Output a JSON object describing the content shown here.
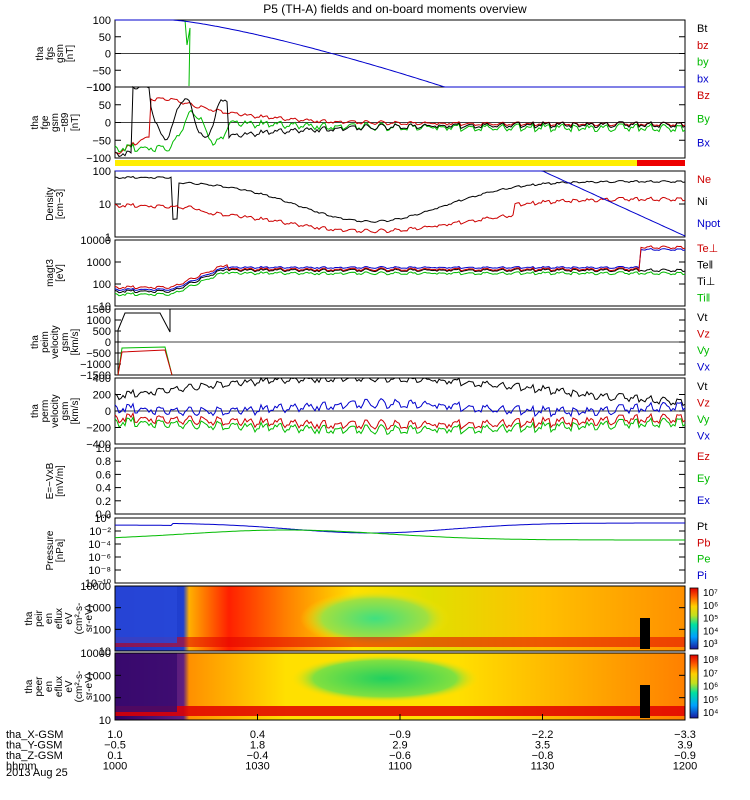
{
  "title": "P5 (TH-A) fields and on-board moments overview",
  "chart_data": {
    "type": "line",
    "title": "P5 (TH-A) fields and on-board moments overview",
    "date": "2013 Aug 25",
    "panels": [
      {
        "id": "fgs",
        "ylabel": [
          "tha",
          "fgs",
          "gsm",
          "[nT]"
        ],
        "ylim": [
          -100,
          100
        ],
        "scale": "linear",
        "ticks": [
          "100",
          "50",
          "0",
          "−50",
          "−100"
        ],
        "legend": [
          {
            "name": "Bt",
            "color": "#000000"
          },
          {
            "name": "bz",
            "color": "#cc0000"
          },
          {
            "name": "by",
            "color": "#00bb00"
          },
          {
            "name": "bx",
            "color": "#0000cc"
          }
        ]
      },
      {
        "id": "fge",
        "ylabel": [
          "tha",
          "fge",
          "gsm",
          "−t89",
          "[nT]"
        ],
        "ylim": [
          -100,
          100
        ],
        "scale": "linear",
        "ticks": [
          "100",
          "50",
          "0",
          "−50",
          "−100"
        ],
        "legend": [
          {
            "name": "Bz",
            "color": "#cc0000"
          },
          {
            "name": "By",
            "color": "#00bb00"
          },
          {
            "name": "Bx",
            "color": "#0000cc"
          }
        ]
      },
      {
        "id": "mode_bar",
        "segments": [
          {
            "from_hhmm": "1000",
            "to_hhmm": "1145",
            "color": "#ffee00"
          },
          {
            "from_hhmm": "1145",
            "to_hhmm": "1200",
            "color": "#ee0000"
          }
        ]
      },
      {
        "id": "density",
        "ylabel": [
          "Density",
          "[cm−3]"
        ],
        "scale": "log",
        "ticks": [
          "100",
          "10",
          "1"
        ],
        "legend": [
          {
            "name": "Ne",
            "color": "#cc0000"
          },
          {
            "name": "Ni",
            "color": "#000000"
          },
          {
            "name": "Npot",
            "color": "#0000cc"
          }
        ]
      },
      {
        "id": "temp",
        "ylabel": [
          "magt3",
          "[eV]"
        ],
        "scale": "log",
        "ticks": [
          "10000",
          "1000",
          "100",
          "10"
        ],
        "legend": [
          {
            "name": "Te⊥",
            "color": "#cc0000"
          },
          {
            "name": "Te‖",
            "color": "#000000"
          },
          {
            "name": "Ti⊥",
            "color": "#000000"
          },
          {
            "name": "Ti‖",
            "color": "#00bb00"
          }
        ]
      },
      {
        "id": "peim_v",
        "ylabel": [
          "tha",
          "peim",
          "velocity",
          "gsm",
          "[km/s]"
        ],
        "ylim": [
          -1500,
          1500
        ],
        "scale": "linear",
        "ticks": [
          "1500",
          "1000",
          "500",
          "0",
          "−500",
          "−1000",
          "−1500"
        ],
        "legend": [
          {
            "name": "Vt",
            "color": "#000000"
          },
          {
            "name": "Vz",
            "color": "#cc0000"
          },
          {
            "name": "Vy",
            "color": "#00bb00"
          },
          {
            "name": "Vx",
            "color": "#0000cc"
          }
        ]
      },
      {
        "id": "perm_v",
        "ylabel": [
          "tha",
          "perm",
          "velocity",
          "gsm",
          "[km/s]"
        ],
        "ylim": [
          -400,
          400
        ],
        "scale": "linear",
        "ticks": [
          "400",
          "200",
          "0",
          "−200",
          "−400"
        ],
        "legend": [
          {
            "name": "Vt",
            "color": "#000000"
          },
          {
            "name": "Vz",
            "color": "#cc0000"
          },
          {
            "name": "Vy",
            "color": "#00bb00"
          },
          {
            "name": "Vx",
            "color": "#0000cc"
          }
        ]
      },
      {
        "id": "efield",
        "ylabel": [
          "E=−VxB",
          "[mV/m]"
        ],
        "ylim": [
          0,
          1
        ],
        "scale": "linear",
        "ticks": [
          "1.0",
          "0.8",
          "0.6",
          "0.4",
          "0.2",
          "0.0"
        ],
        "legend": [
          {
            "name": "Ez",
            "color": "#cc0000"
          },
          {
            "name": "Ey",
            "color": "#00bb00"
          },
          {
            "name": "Ex",
            "color": "#0000cc"
          }
        ]
      },
      {
        "id": "pressure",
        "ylabel": [
          "Pressure",
          "[nPa]"
        ],
        "scale": "log",
        "ticks": [
          "10⁰",
          "10⁻²",
          "10⁻⁴",
          "10⁻⁶",
          "10⁻⁸",
          "10⁻¹⁰"
        ],
        "legend": [
          {
            "name": "Pt",
            "color": "#000000"
          },
          {
            "name": "Pb",
            "color": "#cc0000"
          },
          {
            "name": "Pe",
            "color": "#00bb00"
          },
          {
            "name": "Pi",
            "color": "#0000cc"
          }
        ]
      },
      {
        "id": "peir",
        "type": "heatmap",
        "ylabel": [
          "tha",
          "peir",
          "en",
          "eflux",
          "eV",
          "(cm²-s-",
          "sr-eV)"
        ],
        "ticks": [
          "10000",
          "1000",
          "100",
          "10"
        ],
        "colorbar": [
          "10⁷",
          "10⁶",
          "10⁵",
          "10⁴",
          "10³"
        ]
      },
      {
        "id": "peer",
        "type": "heatmap",
        "ylabel": [
          "tha",
          "peer",
          "en",
          "eflux",
          "eV",
          "(cm²-s-",
          "sr-eV)"
        ],
        "ticks": [
          "10000",
          "1000",
          "100",
          "10"
        ],
        "colorbar": [
          "10⁸",
          "10⁷",
          "10⁶",
          "10⁵",
          "10⁴"
        ]
      }
    ],
    "x_axis": {
      "row_labels": [
        "tha_X-GSM",
        "tha_Y-GSM",
        "tha_Z-GSM",
        "hhmm"
      ],
      "ticks": [
        {
          "values": [
            "1.0",
            "−0.5",
            "0.1",
            "1000"
          ]
        },
        {
          "values": [
            "0.4",
            "1.8",
            "−0.4",
            "1030"
          ]
        },
        {
          "values": [
            "−0.9",
            "2.9",
            "−0.6",
            "1100"
          ]
        },
        {
          "values": [
            "−2.2",
            "3.5",
            "−0.8",
            "1130"
          ]
        },
        {
          "values": [
            "−3.3",
            "3.9",
            "−0.9",
            "1200"
          ]
        }
      ]
    }
  }
}
